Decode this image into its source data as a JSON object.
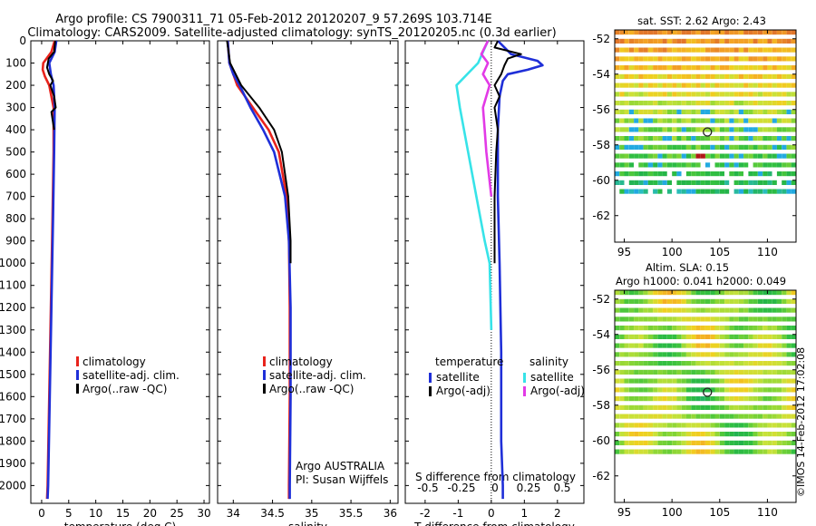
{
  "header": {
    "line1": "Argo profile: CS 7900311_71 05-Feb-2012 20120207_9 57.269S 103.714E",
    "line2": "Climatology: CARS2009. Satellite-adjusted climatology: synTS_20120205.nc (0.3d earlier)"
  },
  "credit": "©IMOS 14-Feb-2012 17:02:08",
  "colors": {
    "red": "#e8231c",
    "blue": "#1f2fd8",
    "black": "#000000",
    "cyan": "#37e3e8",
    "magenta": "#e23ae6",
    "marker": "#222222"
  },
  "chart_data": [
    {
      "type": "line",
      "id": "temperature",
      "xlabel": "temperature (deg C)",
      "xlim": [
        -2,
        31
      ],
      "ylim": [
        2080,
        0
      ],
      "xticks": [
        0,
        5,
        10,
        15,
        20,
        25,
        30
      ],
      "yticks": [
        0,
        100,
        200,
        300,
        400,
        500,
        600,
        700,
        800,
        900,
        1000,
        1100,
        1200,
        1300,
        1400,
        1500,
        1600,
        1700,
        1800,
        1900,
        2000
      ],
      "legend": [
        "climatology",
        "satellite-adj. clim.",
        "Argo(..raw -QC)"
      ],
      "legend_position": "lower-center",
      "series": [
        {
          "name": "climatology",
          "color": "red",
          "depth": [
            0,
            50,
            100,
            130,
            160,
            200,
            300,
            500,
            800,
            1200,
            1600,
            2000,
            2060
          ],
          "values": [
            2.4,
            1.8,
            0.3,
            0.2,
            0.6,
            1.4,
            2.2,
            2.2,
            2.0,
            1.7,
            1.4,
            1.1,
            1.0
          ]
        },
        {
          "name": "satellite-adj. clim.",
          "color": "blue",
          "depth": [
            0,
            50,
            100,
            150,
            200,
            300,
            500,
            800,
            1200,
            1600,
            2000,
            2060
          ],
          "values": [
            2.7,
            2.4,
            1.4,
            1.7,
            2.2,
            2.4,
            2.3,
            2.1,
            1.8,
            1.5,
            1.2,
            1.1
          ]
        },
        {
          "name": "Argo(..raw -QC)",
          "color": "black",
          "depth": [
            0,
            50,
            80,
            120,
            150,
            180,
            200,
            250,
            300,
            320,
            400
          ],
          "values": [
            2.5,
            2.3,
            1.3,
            1.0,
            1.4,
            2.1,
            1.6,
            2.3,
            2.6,
            1.8,
            2.3
          ]
        }
      ]
    },
    {
      "type": "line",
      "id": "salinity",
      "xlabel": "salinity",
      "xlim": [
        33.8,
        36.1
      ],
      "ylim": [
        2080,
        0
      ],
      "xticks": [
        34,
        34.5,
        35,
        35.5,
        36
      ],
      "legend": [
        "climatology",
        "satellite-adj. clim.",
        "Argo(..raw -QC)"
      ],
      "legend_position": "lower-center",
      "annotation": [
        "Argo AUSTRALIA",
        "PI: Susan Wijffels"
      ],
      "series": [
        {
          "name": "climatology",
          "color": "red",
          "depth": [
            0,
            100,
            200,
            300,
            400,
            500,
            700,
            900,
            1200,
            1600,
            2000,
            2060
          ],
          "values": [
            33.93,
            33.95,
            34.05,
            34.25,
            34.45,
            34.58,
            34.68,
            34.71,
            34.72,
            34.72,
            34.71,
            34.71
          ]
        },
        {
          "name": "satellite-adj. clim.",
          "color": "blue",
          "depth": [
            0,
            100,
            150,
            200,
            300,
            400,
            500,
            700,
            900,
            1200,
            1600,
            2000,
            2060
          ],
          "values": [
            33.93,
            33.95,
            34.0,
            34.08,
            34.22,
            34.38,
            34.52,
            34.66,
            34.71,
            34.73,
            34.73,
            34.72,
            34.72
          ]
        },
        {
          "name": "Argo(..raw -QC)",
          "color": "black",
          "depth": [
            0,
            100,
            200,
            300,
            400,
            500,
            700,
            900,
            1000
          ],
          "values": [
            33.92,
            33.96,
            34.1,
            34.33,
            34.52,
            34.62,
            34.7,
            34.73,
            34.73
          ]
        }
      ]
    },
    {
      "type": "line",
      "id": "difference",
      "xlabel_top": "S difference from climatology",
      "xlabel": "T difference from climatology",
      "xlim": [
        -2.6,
        2.8
      ],
      "ylim": [
        2080,
        0
      ],
      "xticks": [
        -2,
        -1,
        0,
        1,
        2
      ],
      "top_ticks": [
        "-0.5",
        "-0.25",
        "0",
        "0.25",
        "0.5"
      ],
      "legend_groups": [
        {
          "title": "temperature",
          "items": [
            {
              "label": "satellite",
              "color": "blue"
            },
            {
              "label": "Argo(-adj)",
              "color": "black"
            }
          ]
        },
        {
          "title": "salinity",
          "items": [
            {
              "label": "satellite",
              "color": "cyan"
            },
            {
              "label": "Argo(-adj)",
              "color": "magenta"
            }
          ]
        }
      ],
      "series": [
        {
          "name": "temperature satellite",
          "color": "blue",
          "depth": [
            0,
            60,
            90,
            110,
            130,
            150,
            180,
            250,
            400,
            700,
            1000,
            1400,
            1800,
            2000,
            2060
          ],
          "values": [
            0.2,
            0.6,
            1.4,
            1.55,
            1.1,
            0.5,
            0.35,
            0.25,
            0.2,
            0.2,
            0.25,
            0.3,
            0.3,
            0.35,
            0.35
          ]
        },
        {
          "name": "temperature Argo(-adj)",
          "color": "black",
          "depth": [
            0,
            30,
            60,
            80,
            110,
            150,
            200,
            250,
            300,
            400,
            500,
            700,
            1000
          ],
          "values": [
            0.2,
            0.1,
            0.9,
            0.5,
            0.4,
            0.3,
            0.1,
            0.25,
            0.1,
            0.2,
            0.15,
            0.1,
            0.1
          ]
        },
        {
          "name": "salinity satellite",
          "color": "cyan",
          "depth": [
            0,
            100,
            200,
            300,
            500,
            700,
            900,
            1000,
            1300
          ],
          "values": [
            -0.1,
            -0.4,
            -1.05,
            -0.95,
            -0.7,
            -0.45,
            -0.2,
            -0.05,
            0.0
          ]
        },
        {
          "name": "salinity Argo(-adj)",
          "color": "magenta",
          "depth": [
            0,
            60,
            100,
            150,
            200,
            300,
            400,
            500,
            700
          ],
          "values": [
            -0.1,
            -0.3,
            -0.1,
            -0.25,
            -0.05,
            -0.25,
            -0.2,
            -0.15,
            0.0
          ]
        }
      ]
    },
    {
      "type": "heatmap",
      "id": "sst-map",
      "title": "sat. SST: 2.62 Argo: 2.43",
      "xlim": [
        94,
        113
      ],
      "ylim": [
        -63.5,
        -51.5
      ],
      "xticks": [
        95,
        100,
        105,
        110
      ],
      "yticks": [
        -52,
        -54,
        -56,
        -58,
        -60,
        -62
      ],
      "argo_position": {
        "lon": 103.714,
        "lat": -57.269
      }
    },
    {
      "type": "heatmap",
      "id": "sla-map",
      "title_lines": [
        "Altim. SLA: 0.15",
        "Argo h1000: 0.041 h2000: 0.049"
      ],
      "xlim": [
        94,
        113
      ],
      "ylim": [
        -63.5,
        -51.5
      ],
      "xticks": [
        95,
        100,
        105,
        110
      ],
      "yticks": [
        -52,
        -54,
        -56,
        -58,
        -60,
        -62
      ],
      "argo_position": {
        "lon": 103.714,
        "lat": -57.269
      }
    }
  ]
}
